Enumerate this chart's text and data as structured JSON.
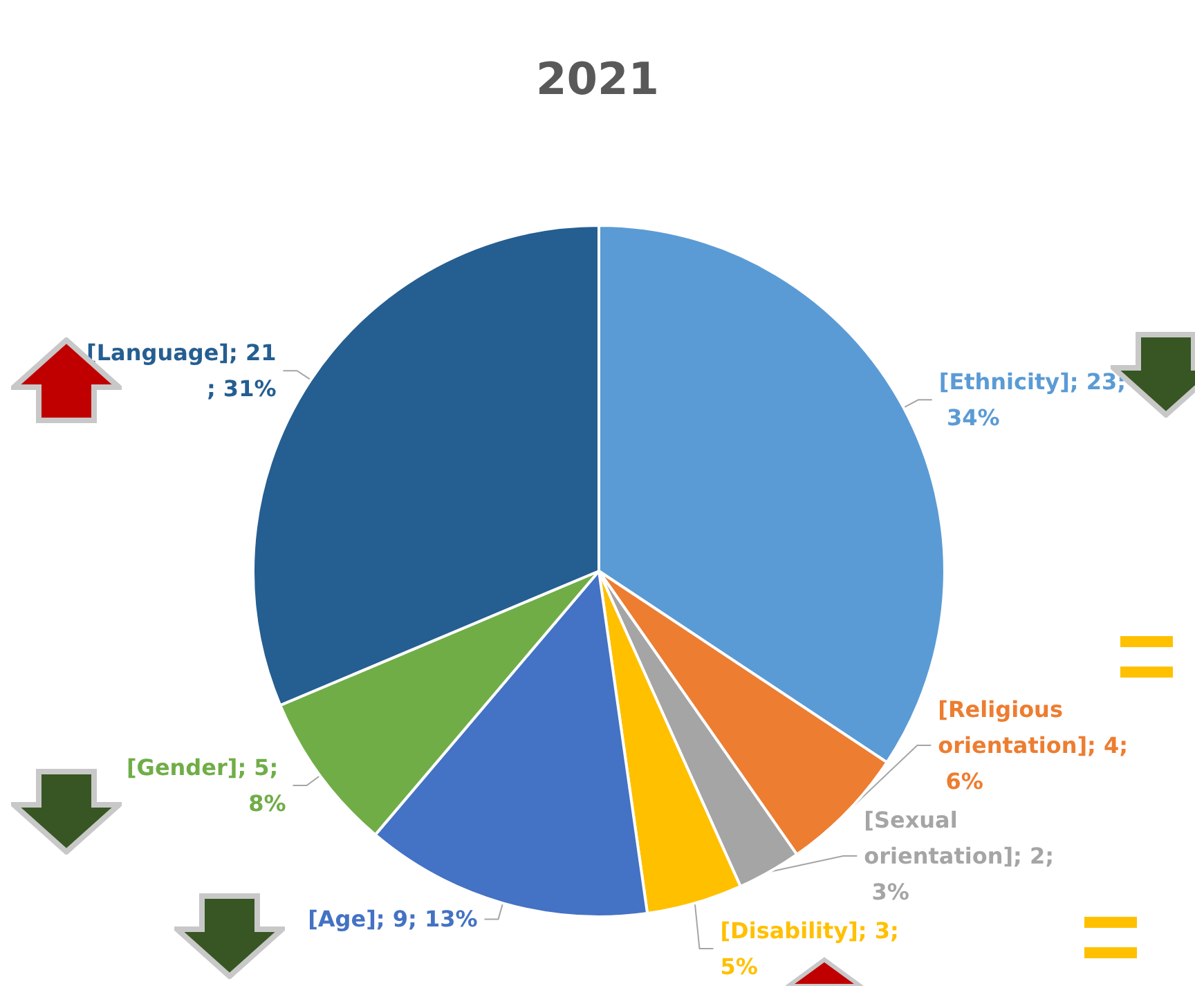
{
  "chart_data": {
    "type": "pie",
    "title": "2021",
    "categories": [
      "[Ethnicity]",
      "[Religious orientation]",
      "[Sexual orientation]",
      "[Disability]",
      "[Age]",
      "[Gender]",
      "[Language]"
    ],
    "values": [
      23,
      4,
      2,
      3,
      9,
      5,
      21
    ],
    "colors": [
      "#5b9bd5",
      "#ed7d31",
      "#a5a5a5",
      "#ffc000",
      "#4472c4",
      "#70ad47",
      "#255e91"
    ],
    "value_labels": [
      "23; 34%",
      "4; 6%",
      "2; 3%",
      "3; 5%",
      "9; 13%",
      "5; 8%",
      "21; 31%"
    ],
    "legend": false
  }
}
